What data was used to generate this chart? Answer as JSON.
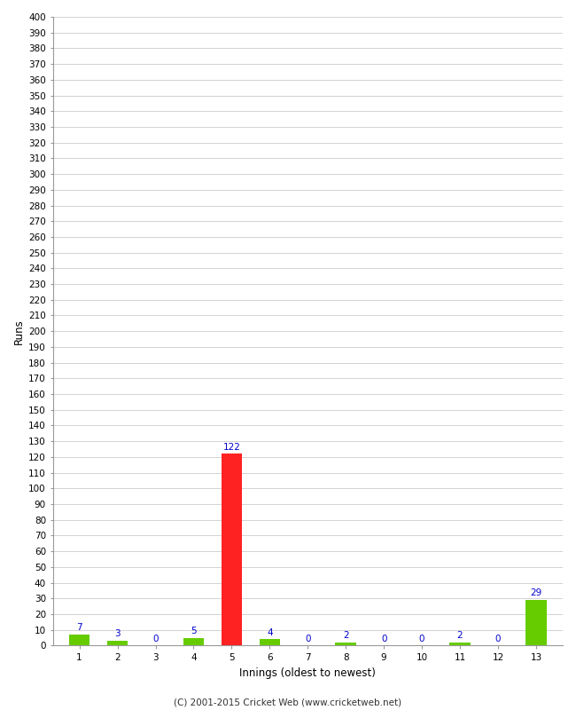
{
  "innings": [
    1,
    2,
    3,
    4,
    5,
    6,
    7,
    8,
    9,
    10,
    11,
    12,
    13
  ],
  "runs": [
    7,
    3,
    0,
    5,
    122,
    4,
    0,
    2,
    0,
    0,
    2,
    0,
    29
  ],
  "bar_colors": [
    "#66cc00",
    "#66cc00",
    "#66cc00",
    "#66cc00",
    "#ff2222",
    "#66cc00",
    "#66cc00",
    "#66cc00",
    "#66cc00",
    "#66cc00",
    "#66cc00",
    "#66cc00",
    "#66cc00"
  ],
  "xlabel": "Innings (oldest to newest)",
  "ylabel": "Runs",
  "ylim": [
    0,
    400
  ],
  "ytick_step": 10,
  "ytick_label_step": 10,
  "background_color": "#ffffff",
  "plot_bg_color": "#ffffff",
  "grid_color": "#cccccc",
  "annotation_color": "#0000cc",
  "annotation_fontsize": 7.5,
  "axis_label_fontsize": 8.5,
  "tick_fontsize": 7.5,
  "footer": "(C) 2001-2015 Cricket Web (www.cricketweb.net)",
  "footer_fontsize": 7.5
}
